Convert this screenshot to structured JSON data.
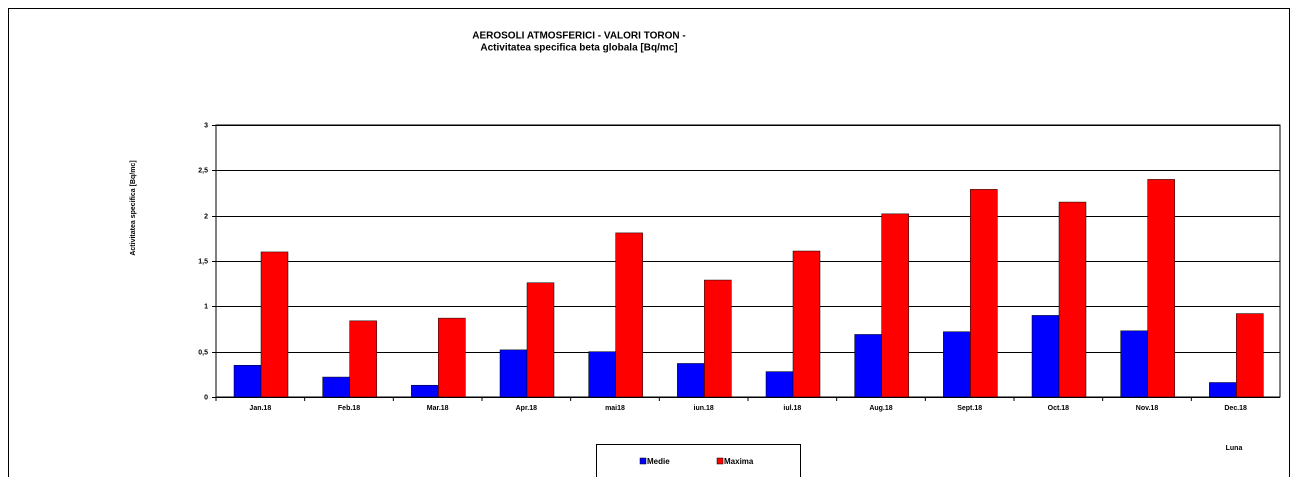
{
  "chart_data": {
    "type": "bar",
    "title": "AEROSOLI ATMOSFERICI - VALORI TORON -",
    "subtitle": "Activitatea specifica beta globala [Bq/mc]",
    "y_label": "Activitatea specifica [Bq/mc]",
    "x_label": "Luna",
    "categories": [
      "Jan.18",
      "Feb.18",
      "Mar.18",
      "Apr.18",
      "mai18",
      "iun.18",
      "iul.18",
      "Aug.18",
      "Sept.18",
      "Oct.18",
      "Nov.18",
      "Dec.18"
    ],
    "series": [
      {
        "name": "Medie",
        "color": "#0000ff",
        "values": [
          0.35,
          0.22,
          0.13,
          0.52,
          0.5,
          0.37,
          0.28,
          0.69,
          0.72,
          0.9,
          0.73,
          0.16
        ]
      },
      {
        "name": "Maxima",
        "color": "#ff0000",
        "values": [
          1.6,
          0.84,
          0.87,
          1.26,
          1.81,
          1.29,
          1.61,
          2.02,
          2.29,
          2.15,
          2.4,
          0.92
        ]
      }
    ],
    "ylim": [
      0,
      3
    ],
    "yticks": [
      0,
      {
        "value": 0.5,
        "label": "0,5"
      },
      1,
      {
        "value": 1.5,
        "label": "1,5"
      },
      2,
      {
        "value": 2.5,
        "label": "2,5"
      },
      3
    ],
    "grid": true
  }
}
